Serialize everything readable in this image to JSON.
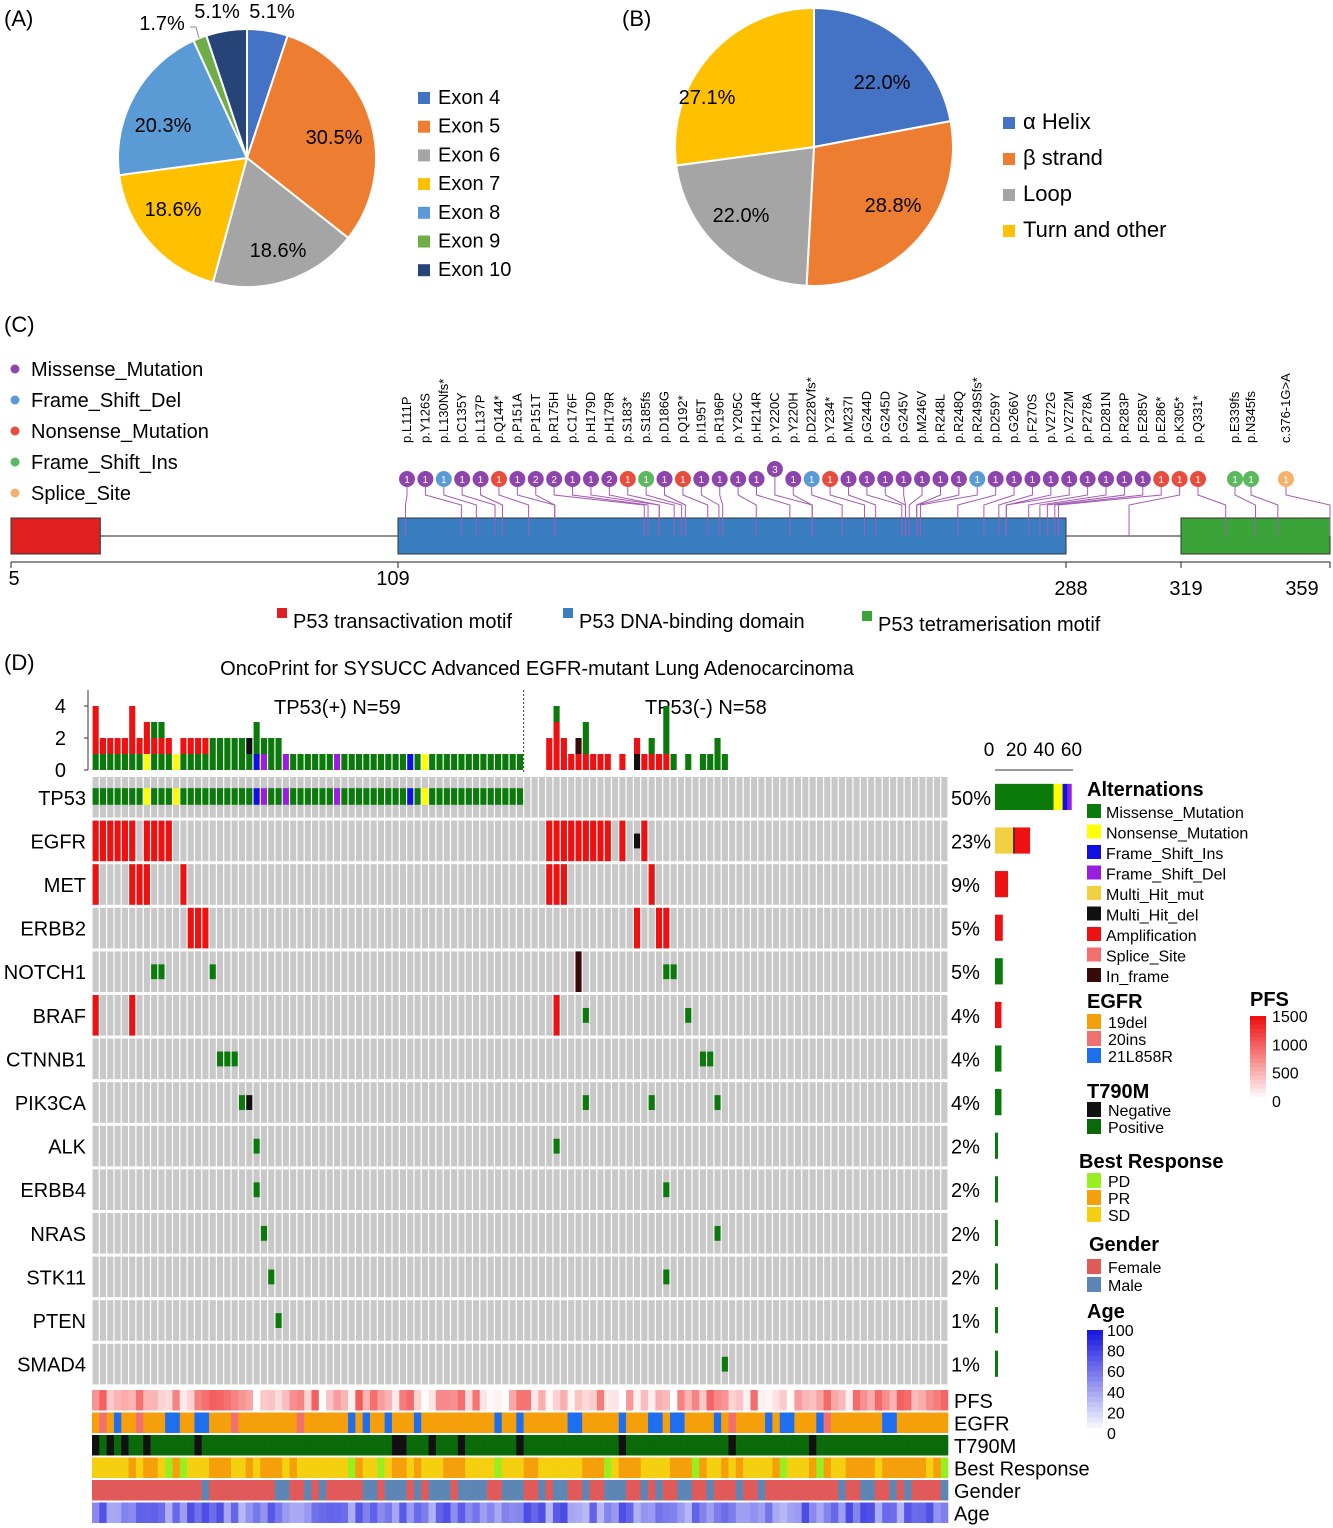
{
  "panels": {
    "a": "(A)",
    "b": "(B)",
    "c": "(C)",
    "d": "(D)"
  },
  "chart_data": [
    {
      "panel": "A",
      "type": "pie",
      "categories": [
        "Exon 4",
        "Exon 5",
        "Exon 6",
        "Exon 7",
        "Exon 8",
        "Exon 9",
        "Exon 10"
      ],
      "values": [
        5.1,
        30.5,
        18.6,
        18.6,
        20.3,
        1.7,
        5.1
      ],
      "labels": [
        "5.1%",
        "30.5%",
        "18.6%",
        "18.6%",
        "20.3%",
        "1.7%",
        "5.1%"
      ],
      "colors": [
        "#4472c4",
        "#ed7d31",
        "#a5a5a5",
        "#ffc000",
        "#5b9bd5",
        "#70ad47",
        "#264478"
      ],
      "legend": "right"
    },
    {
      "panel": "B",
      "type": "pie",
      "categories": [
        "α Helix",
        "β strand",
        "Loop",
        "Turn and other"
      ],
      "values": [
        22.0,
        28.8,
        22.0,
        27.1
      ],
      "labels": [
        "22.0%",
        "28.8%",
        "22.0%",
        "27.1%"
      ],
      "colors": [
        "#4472c4",
        "#ed7d31",
        "#a5a5a5",
        "#ffc000"
      ],
      "legend": "right"
    },
    {
      "panel": "C",
      "type": "scatter",
      "legend_title": "",
      "legend": [
        {
          "name": "Missense_Mutation",
          "color": "#8e44ad"
        },
        {
          "name": "Frame_Shift_Del",
          "color": "#5b9bd5"
        },
        {
          "name": "Nonsense_Mutation",
          "color": "#e74c3c"
        },
        {
          "name": "Frame_Shift_Ins",
          "color": "#5cb85c"
        },
        {
          "name": "Splice_Site",
          "color": "#f6b26b"
        }
      ],
      "domains": [
        {
          "name": "P53 transactivation motif",
          "start": 5,
          "end": 29,
          "color": "#e02020"
        },
        {
          "name": "P53 DNA-binding domain",
          "start": 109,
          "end": 288,
          "color": "#3a7ec2"
        },
        {
          "name": "P53 tetramerisation motif",
          "start": 319,
          "end": 359,
          "color": "#3aa33a"
        }
      ],
      "axis_ticks": [
        "5",
        "109",
        "288",
        "319",
        "359"
      ],
      "mutations": [
        {
          "label": "p.L111P",
          "pos": 111,
          "count": 1,
          "type": "Missense_Mutation"
        },
        {
          "label": "p.Y126S",
          "pos": 126,
          "count": 1,
          "type": "Missense_Mutation"
        },
        {
          "label": "p.L130Nfs*",
          "pos": 130,
          "count": 1,
          "type": "Frame_Shift_Del"
        },
        {
          "label": "p.C135Y",
          "pos": 135,
          "count": 1,
          "type": "Missense_Mutation"
        },
        {
          "label": "p.L137P",
          "pos": 137,
          "count": 1,
          "type": "Missense_Mutation"
        },
        {
          "label": "p.Q144*",
          "pos": 144,
          "count": 1,
          "type": "Nonsense_Mutation"
        },
        {
          "label": "p.P151A",
          "pos": 151,
          "count": 1,
          "type": "Missense_Mutation"
        },
        {
          "label": "p.P151T",
          "pos": 151,
          "count": 2,
          "type": "Missense_Mutation"
        },
        {
          "label": "p.R175H",
          "pos": 175,
          "count": 2,
          "type": "Missense_Mutation"
        },
        {
          "label": "p.C176F",
          "pos": 176,
          "count": 1,
          "type": "Missense_Mutation"
        },
        {
          "label": "p.H179D",
          "pos": 179,
          "count": 1,
          "type": "Missense_Mutation"
        },
        {
          "label": "p.H179R",
          "pos": 179,
          "count": 2,
          "type": "Missense_Mutation"
        },
        {
          "label": "p.S183*",
          "pos": 183,
          "count": 1,
          "type": "Nonsense_Mutation"
        },
        {
          "label": "p.S185fs",
          "pos": 185,
          "count": 1,
          "type": "Frame_Shift_Ins"
        },
        {
          "label": "p.D186G",
          "pos": 186,
          "count": 1,
          "type": "Missense_Mutation"
        },
        {
          "label": "p.Q192*",
          "pos": 192,
          "count": 1,
          "type": "Nonsense_Mutation"
        },
        {
          "label": "p.I195T",
          "pos": 195,
          "count": 1,
          "type": "Missense_Mutation"
        },
        {
          "label": "p.R196P",
          "pos": 196,
          "count": 1,
          "type": "Missense_Mutation"
        },
        {
          "label": "p.Y205C",
          "pos": 205,
          "count": 1,
          "type": "Missense_Mutation"
        },
        {
          "label": "p.H214R",
          "pos": 214,
          "count": 1,
          "type": "Missense_Mutation"
        },
        {
          "label": "p.Y220C",
          "pos": 220,
          "count": 3,
          "type": "Missense_Mutation"
        },
        {
          "label": "p.Y220H",
          "pos": 220,
          "count": 1,
          "type": "Missense_Mutation"
        },
        {
          "label": "p.D228Vfs*",
          "pos": 228,
          "count": 1,
          "type": "Frame_Shift_Del"
        },
        {
          "label": "p.Y234*",
          "pos": 234,
          "count": 1,
          "type": "Nonsense_Mutation"
        },
        {
          "label": "p.M237I",
          "pos": 237,
          "count": 1,
          "type": "Missense_Mutation"
        },
        {
          "label": "p.G244D",
          "pos": 244,
          "count": 1,
          "type": "Missense_Mutation"
        },
        {
          "label": "p.G245D",
          "pos": 245,
          "count": 1,
          "type": "Missense_Mutation"
        },
        {
          "label": "p.G245V",
          "pos": 245,
          "count": 1,
          "type": "Missense_Mutation"
        },
        {
          "label": "p.M246V",
          "pos": 246,
          "count": 1,
          "type": "Missense_Mutation"
        },
        {
          "label": "p.R248L",
          "pos": 248,
          "count": 1,
          "type": "Missense_Mutation"
        },
        {
          "label": "p.R248Q",
          "pos": 248,
          "count": 1,
          "type": "Missense_Mutation"
        },
        {
          "label": "p.R249Sfs*",
          "pos": 249,
          "count": 1,
          "type": "Frame_Shift_Del"
        },
        {
          "label": "p.D259Y",
          "pos": 259,
          "count": 1,
          "type": "Missense_Mutation"
        },
        {
          "label": "p.G266V",
          "pos": 266,
          "count": 1,
          "type": "Missense_Mutation"
        },
        {
          "label": "p.F270S",
          "pos": 270,
          "count": 1,
          "type": "Missense_Mutation"
        },
        {
          "label": "p.V272G",
          "pos": 272,
          "count": 1,
          "type": "Missense_Mutation"
        },
        {
          "label": "p.V272M",
          "pos": 272,
          "count": 1,
          "type": "Missense_Mutation"
        },
        {
          "label": "p.P278A",
          "pos": 278,
          "count": 1,
          "type": "Missense_Mutation"
        },
        {
          "label": "p.D281N",
          "pos": 281,
          "count": 1,
          "type": "Missense_Mutation"
        },
        {
          "label": "p.R283P",
          "pos": 283,
          "count": 1,
          "type": "Missense_Mutation"
        },
        {
          "label": "p.E285V",
          "pos": 285,
          "count": 1,
          "type": "Missense_Mutation"
        },
        {
          "label": "p.E286*",
          "pos": 286,
          "count": 1,
          "type": "Nonsense_Mutation"
        },
        {
          "label": "p.K305*",
          "pos": 305,
          "count": 1,
          "type": "Nonsense_Mutation"
        },
        {
          "label": "p.Q331*",
          "pos": 331,
          "count": 1,
          "type": "Nonsense_Mutation"
        },
        {
          "label": "p.E339fs",
          "pos": 339,
          "count": 1,
          "type": "Frame_Shift_Ins"
        },
        {
          "label": "p.N345fs",
          "pos": 345,
          "count": 1,
          "type": "Frame_Shift_Ins"
        },
        {
          "label": "c.376-1G>A",
          "pos": 359,
          "count": 1,
          "type": "Splice_Site"
        }
      ]
    },
    {
      "panel": "D",
      "type": "heatmap",
      "title": "OncoPrint for SYSUCC Advanced EGFR-mutant Lung Adenocarcinoma",
      "groups": [
        {
          "label": "TP53(+) N=59",
          "n": 59
        },
        {
          "label": "TP53(-) N=58",
          "n": 58
        }
      ],
      "top_axis_ticks": [
        "0",
        "2",
        "4"
      ],
      "right_axis_ticks": [
        "0",
        "20",
        "40",
        "60"
      ],
      "genes": [
        {
          "name": "TP53",
          "pct": "50%",
          "count": 59
        },
        {
          "name": "EGFR",
          "pct": "23%",
          "count": 27
        },
        {
          "name": "MET",
          "pct": "9%",
          "count": 10
        },
        {
          "name": "ERBB2",
          "pct": "5%",
          "count": 6
        },
        {
          "name": "NOTCH1",
          "pct": "5%",
          "count": 6
        },
        {
          "name": "BRAF",
          "pct": "4%",
          "count": 5
        },
        {
          "name": "CTNNB1",
          "pct": "4%",
          "count": 5
        },
        {
          "name": "PIK3CA",
          "pct": "4%",
          "count": 5
        },
        {
          "name": "ALK",
          "pct": "2%",
          "count": 2
        },
        {
          "name": "ERBB4",
          "pct": "2%",
          "count": 2
        },
        {
          "name": "NRAS",
          "pct": "2%",
          "count": 2
        },
        {
          "name": "STK11",
          "pct": "2%",
          "count": 2
        },
        {
          "name": "PTEN",
          "pct": "1%",
          "count": 1
        },
        {
          "name": "SMAD4",
          "pct": "1%",
          "count": 1
        }
      ],
      "annotation_tracks": [
        "PFS",
        "EGFR",
        "T790M",
        "Best Response",
        "Gender",
        "Age"
      ],
      "legends": {
        "alterations": {
          "title": "Alternations",
          "items": [
            {
              "name": "Missense_Mutation",
              "color": "#0a7a0a"
            },
            {
              "name": "Nonsense_Mutation",
              "color": "#ffff00"
            },
            {
              "name": "Frame_Shift_Ins",
              "color": "#1010e0"
            },
            {
              "name": "Frame_Shift_Del",
              "color": "#9a1ee0"
            },
            {
              "name": "Multi_Hit_mut",
              "color": "#f0d040"
            },
            {
              "name": "Multi_Hit_del",
              "color": "#111111"
            },
            {
              "name": "Amplification",
              "color": "#ee1111"
            },
            {
              "name": "Splice_Site",
              "color": "#f07070"
            },
            {
              "name": "In_frame",
              "color": "#3a0a0a"
            }
          ]
        },
        "egfr": {
          "title": "EGFR",
          "items": [
            {
              "name": "19del",
              "color": "#f5a00a"
            },
            {
              "name": "20ins",
              "color": "#f07070"
            },
            {
              "name": "21L858R",
              "color": "#1e6ef0"
            }
          ]
        },
        "pfs": {
          "title": "PFS",
          "ticks": [
            "1500",
            "1000",
            "500",
            "0"
          ],
          "low": "#ffffff",
          "high": "#ee1111"
        },
        "t790m": {
          "title": "T790M",
          "items": [
            {
              "name": "Negative",
              "color": "#111111"
            },
            {
              "name": "Positive",
              "color": "#0a6a0a"
            }
          ]
        },
        "response": {
          "title": "Best Response",
          "items": [
            {
              "name": "PD",
              "color": "#99ee22"
            },
            {
              "name": "PR",
              "color": "#f5a00a"
            },
            {
              "name": "SD",
              "color": "#f5d010"
            }
          ]
        },
        "gender": {
          "title": "Gender",
          "items": [
            {
              "name": "Female",
              "color": "#e05a5a"
            },
            {
              "name": "Male",
              "color": "#5e86b4"
            }
          ]
        },
        "age": {
          "title": "Age",
          "ticks": [
            "100",
            "80",
            "60",
            "40",
            "20",
            "0"
          ],
          "low": "#ffffff",
          "high": "#1a1ae0"
        }
      }
    }
  ]
}
